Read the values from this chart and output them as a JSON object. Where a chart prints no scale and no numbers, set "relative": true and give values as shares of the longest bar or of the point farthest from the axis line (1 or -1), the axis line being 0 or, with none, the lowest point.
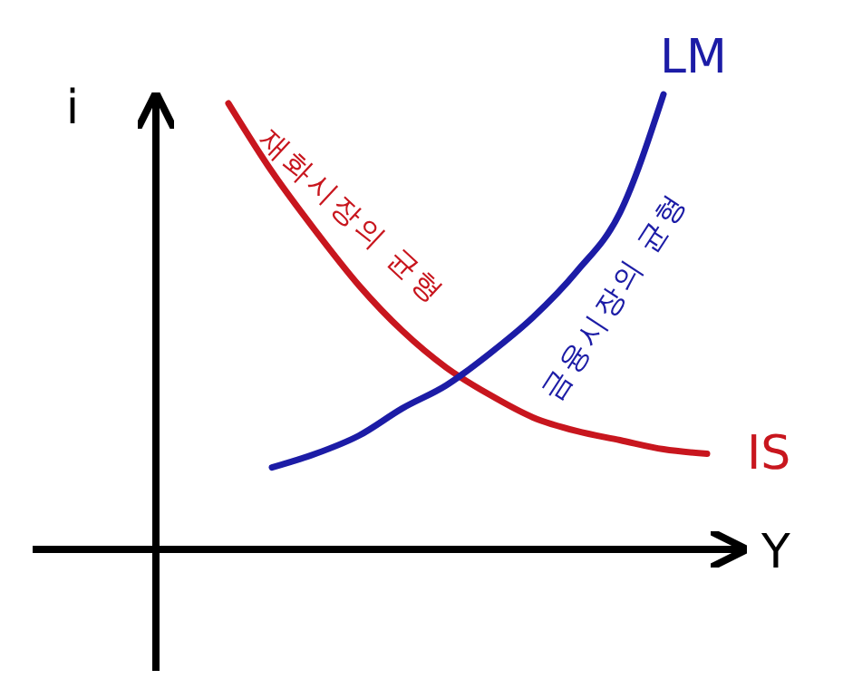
{
  "chart_data": {
    "type": "line",
    "relative": true,
    "xlabel": "Y",
    "ylabel": "i",
    "categories": [
      null,
      null,
      null,
      null,
      null,
      null,
      null,
      null,
      null,
      null,
      null,
      null
    ],
    "series": [
      {
        "name": "IS",
        "color": "#c8161e",
        "values": [
          0.98,
          0.83,
          0.7,
          0.58,
          0.48,
          0.4,
          0.34,
          0.29,
          0.26,
          0.24,
          0.22,
          0.21
        ]
      },
      {
        "name": "LM",
        "color": "#1c1ca6",
        "values": [
          null,
          0.18,
          0.21,
          0.25,
          0.31,
          0.36,
          0.43,
          0.51,
          0.61,
          0.74,
          1.0,
          null
        ]
      }
    ],
    "annotations": [
      "재화시장의 균형",
      "금융시장의 균형"
    ],
    "line_style": "solid",
    "marker": "none"
  }
}
